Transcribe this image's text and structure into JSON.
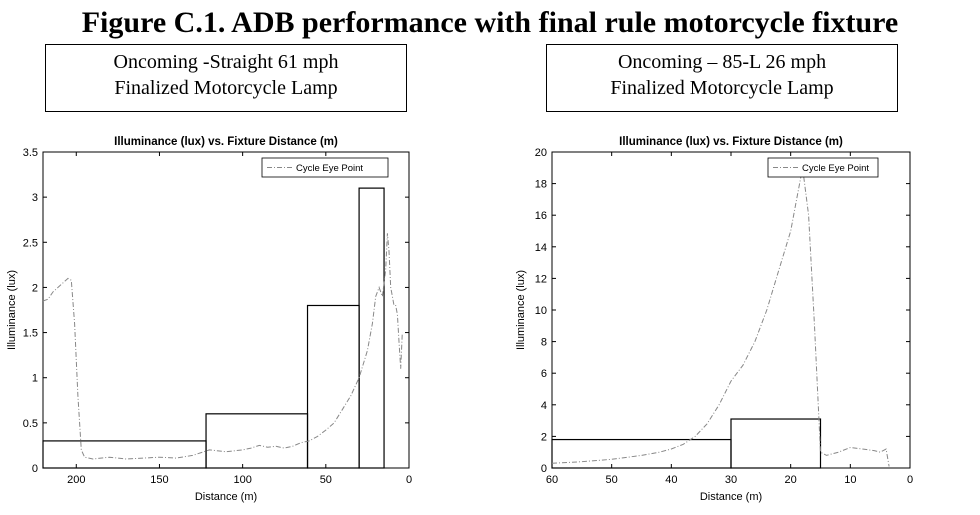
{
  "figure": {
    "title": "Figure C.1. ADB performance with final rule motorcycle fixture"
  },
  "chart_data": [
    {
      "type": "line",
      "caption": [
        "Oncoming -Straight 61 mph",
        "Finalized Motorcycle Lamp"
      ],
      "title": "Illuminance (lux) vs. Fixture Distance (m)",
      "xlabel": "Distance (m)",
      "ylabel": "Illuminance (lux)",
      "xlim": [
        220,
        0
      ],
      "ylim": [
        0,
        3.5
      ],
      "xticks": [
        200,
        150,
        100,
        50,
        0
      ],
      "yticks": [
        0,
        0.5,
        1,
        1.5,
        2,
        2.5,
        3,
        3.5
      ],
      "legend": {
        "position": "top-right",
        "entries": [
          "Cycle Eye Point"
        ]
      },
      "series": [
        {
          "name": "Cycle Eye Point",
          "x": [
            220,
            217,
            214,
            211,
            208,
            205,
            203,
            201,
            199,
            197,
            195,
            190,
            180,
            170,
            160,
            150,
            140,
            130,
            120,
            110,
            100,
            95,
            90,
            85,
            80,
            75,
            70,
            65,
            60,
            55,
            50,
            45,
            40,
            35,
            30,
            25,
            22,
            20,
            18,
            16,
            14,
            13,
            12,
            11,
            10,
            9,
            8,
            7,
            6,
            5,
            4
          ],
          "y": [
            1.85,
            1.87,
            1.95,
            2.0,
            2.05,
            2.1,
            2.08,
            1.6,
            0.8,
            0.2,
            0.12,
            0.1,
            0.12,
            0.1,
            0.11,
            0.12,
            0.11,
            0.14,
            0.2,
            0.18,
            0.2,
            0.22,
            0.25,
            0.23,
            0.24,
            0.22,
            0.24,
            0.28,
            0.3,
            0.35,
            0.42,
            0.5,
            0.65,
            0.8,
            1.0,
            1.3,
            1.6,
            1.9,
            2.0,
            1.9,
            2.2,
            2.6,
            2.4,
            2.0,
            1.9,
            1.8,
            1.8,
            1.7,
            1.4,
            1.1,
            1.5
          ]
        }
      ],
      "limit_steps": [
        {
          "x_from": 220,
          "x_to": 122,
          "y": 0.3
        },
        {
          "x_from": 122,
          "x_to": 61,
          "y": 0.6
        },
        {
          "x_from": 61,
          "x_to": 30,
          "y": 1.8
        },
        {
          "x_from": 30,
          "x_to": 15,
          "y": 3.1
        }
      ]
    },
    {
      "type": "line",
      "caption": [
        "Oncoming – 85-L 26 mph",
        "Finalized Motorcycle Lamp"
      ],
      "title": "Illuminance (lux) vs. Fixture Distance (m)",
      "xlabel": "Distance (m)",
      "ylabel": "Illuminance (lux)",
      "xlim": [
        60,
        0
      ],
      "ylim": [
        0,
        20
      ],
      "xticks": [
        60,
        50,
        40,
        30,
        20,
        10,
        0
      ],
      "yticks": [
        0,
        2,
        4,
        6,
        8,
        10,
        12,
        14,
        16,
        18,
        20
      ],
      "legend": {
        "position": "top-right",
        "entries": [
          "Cycle Eye Point"
        ]
      },
      "series": [
        {
          "name": "Cycle Eye Point",
          "x": [
            60,
            55,
            50,
            45,
            42,
            40,
            38,
            36,
            34,
            32,
            30,
            28,
            26,
            24,
            22,
            20,
            19,
            18,
            17,
            16,
            15,
            14,
            12,
            10,
            8,
            6,
            5,
            4,
            3.5
          ],
          "y": [
            0.3,
            0.4,
            0.55,
            0.8,
            1.0,
            1.2,
            1.5,
            2.0,
            2.8,
            4.0,
            5.5,
            6.5,
            8.0,
            10.0,
            12.5,
            15.0,
            17.0,
            19.0,
            16.0,
            9.0,
            1.0,
            0.8,
            1.0,
            1.3,
            1.2,
            1.1,
            1.0,
            1.2,
            0.1
          ]
        }
      ],
      "limit_steps": [
        {
          "x_from": 60,
          "x_to": 30,
          "y": 1.8
        },
        {
          "x_from": 30,
          "x_to": 15,
          "y": 3.1
        }
      ]
    }
  ]
}
